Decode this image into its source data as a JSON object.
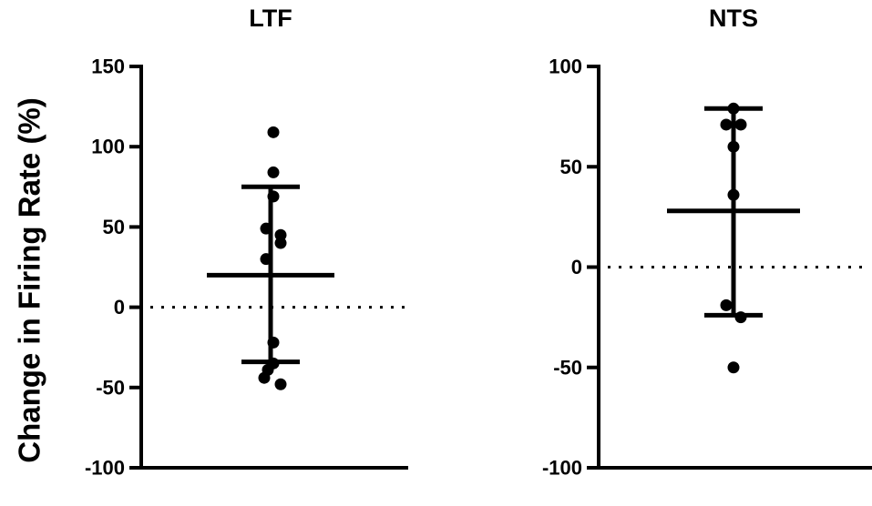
{
  "ylabel": "Change in Firing Rate (%)",
  "chart_data": [
    {
      "type": "scatter",
      "title": "LTF",
      "ylim": [
        -100,
        150
      ],
      "yticks": [
        -100,
        -50,
        0,
        50,
        100,
        150
      ],
      "reference_line": 0,
      "points": [
        109,
        84,
        69,
        49,
        45,
        40,
        30,
        -22,
        -35,
        -39,
        -44,
        -48
      ],
      "mean": 20,
      "sd_upper": 75,
      "sd_lower": -34,
      "color": "#000000"
    },
    {
      "type": "scatter",
      "title": "NTS",
      "ylim": [
        -100,
        100
      ],
      "yticks": [
        -100,
        -50,
        0,
        50,
        100
      ],
      "reference_line": 0,
      "points": [
        79,
        71,
        71,
        60,
        36,
        -19,
        -25,
        -50
      ],
      "mean": 28,
      "sd_upper": 79,
      "sd_lower": -24,
      "color": "#000000"
    }
  ]
}
